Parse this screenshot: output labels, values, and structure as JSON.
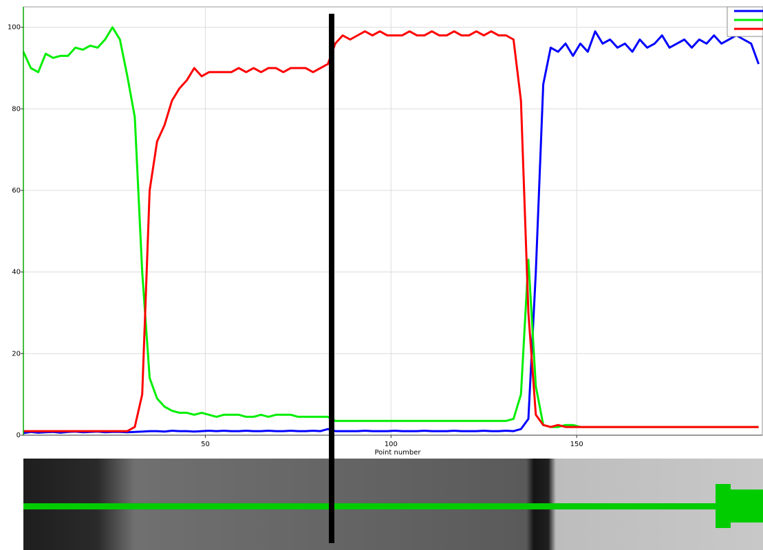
{
  "chart_data": {
    "type": "line",
    "x_label": "Point number",
    "x": [
      1,
      3,
      5,
      7,
      9,
      11,
      13,
      15,
      17,
      19,
      21,
      23,
      25,
      27,
      29,
      31,
      33,
      35,
      37,
      39,
      41,
      43,
      45,
      47,
      49,
      51,
      53,
      55,
      57,
      59,
      61,
      63,
      65,
      67,
      69,
      71,
      73,
      75,
      77,
      79,
      81,
      83,
      85,
      87,
      89,
      91,
      93,
      95,
      97,
      99,
      101,
      103,
      105,
      107,
      109,
      111,
      113,
      115,
      117,
      119,
      121,
      123,
      125,
      127,
      129,
      131,
      133,
      135,
      137,
      139,
      141,
      143,
      145,
      147,
      149,
      151,
      153,
      155,
      157,
      159,
      161,
      163,
      165,
      167,
      169,
      171,
      173,
      175,
      177,
      179,
      181,
      183,
      185,
      187,
      189,
      191,
      193,
      195,
      197,
      199
    ],
    "series": [
      {
        "color": "#0000ff",
        "values": [
          0.5,
          0.8,
          0.6,
          0.7,
          0.8,
          0.6,
          0.8,
          0.9,
          0.7,
          0.8,
          0.9,
          0.7,
          0.8,
          0.8,
          0.7,
          0.8,
          0.9,
          1,
          1,
          0.9,
          1.1,
          1,
          1,
          0.9,
          1,
          1.1,
          1,
          1.1,
          1,
          1,
          1.1,
          1,
          1,
          1.1,
          1,
          1,
          1.1,
          1,
          1,
          1.1,
          1,
          1.5,
          1,
          1,
          1,
          1,
          1.1,
          1,
          1,
          1,
          1.1,
          1,
          1,
          1,
          1.1,
          1,
          1,
          1,
          1.1,
          1,
          1,
          1,
          1.1,
          1,
          1,
          1.1,
          1,
          1.5,
          4,
          40,
          86,
          95,
          94,
          96,
          93,
          96,
          94,
          99,
          96,
          97,
          95,
          96,
          94,
          97,
          95,
          96,
          98,
          95,
          96,
          97,
          95,
          97,
          96,
          98,
          96,
          97,
          98,
          97,
          96,
          91
        ]
      },
      {
        "color": "#00ee00",
        "values": [
          94,
          90,
          89,
          93.5,
          92.5,
          93,
          93,
          95,
          94.5,
          95.5,
          95,
          97,
          100,
          97,
          88,
          78,
          40,
          14,
          9,
          7,
          6,
          5.5,
          5.5,
          5,
          5.5,
          5,
          4.5,
          5,
          5,
          5,
          4.5,
          4.5,
          5,
          4.5,
          5,
          5,
          5,
          4.5,
          4.5,
          4.5,
          4.5,
          4.5,
          3.5,
          3.5,
          3.5,
          3.5,
          3.5,
          3.5,
          3.5,
          3.5,
          3.5,
          3.5,
          3.5,
          3.5,
          3.5,
          3.5,
          3.5,
          3.5,
          3.5,
          3.5,
          3.5,
          3.5,
          3.5,
          3.5,
          3.5,
          3.5,
          4,
          10,
          43,
          12,
          2.5,
          2,
          2,
          2.5,
          2.5,
          2,
          2,
          2,
          2,
          2,
          2,
          2,
          2,
          2,
          2,
          2,
          2,
          2,
          2,
          2,
          2,
          2,
          2,
          2,
          2,
          2,
          2,
          2,
          2,
          2
        ]
      },
      {
        "color": "#ff0000",
        "values": [
          1,
          1,
          1,
          1,
          1,
          1,
          1,
          1,
          1,
          1,
          1,
          1,
          1,
          1,
          1,
          2,
          10,
          60,
          72,
          76,
          82,
          85,
          87,
          90,
          88,
          89,
          89,
          89,
          89,
          90,
          89,
          90,
          89,
          90,
          90,
          89,
          90,
          90,
          90,
          89,
          90,
          91,
          96,
          98,
          97,
          98,
          99,
          98,
          99,
          98,
          98,
          98,
          99,
          98,
          98,
          99,
          98,
          98,
          99,
          98,
          98,
          99,
          98,
          99,
          98,
          98,
          97,
          82,
          30,
          5,
          2.5,
          2,
          2.5,
          2,
          2,
          2,
          2,
          2,
          2,
          2,
          2,
          2,
          2,
          2,
          2,
          2,
          2,
          2,
          2,
          2,
          2,
          2,
          2,
          2,
          2,
          2,
          2,
          2,
          2,
          2
        ]
      }
    ],
    "xlim": [
      1,
      200
    ],
    "xticks": [
      50,
      100,
      150
    ],
    "ylim": [
      0,
      105
    ],
    "yticks": [
      0,
      20,
      40,
      60,
      80,
      100
    ],
    "grid": true,
    "legend": "upper right"
  }
}
